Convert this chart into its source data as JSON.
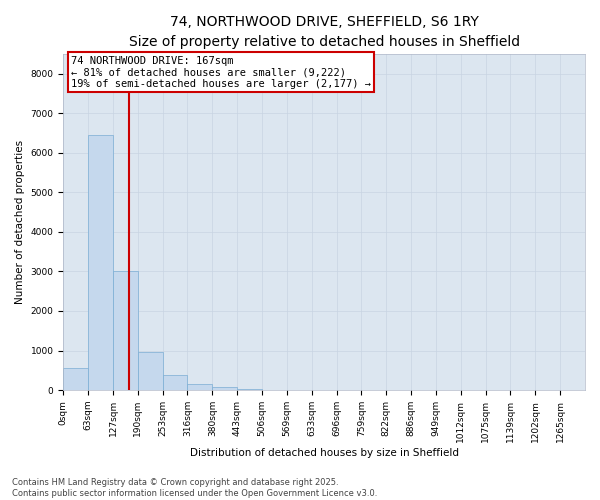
{
  "title_line1": "74, NORTHWOOD DRIVE, SHEFFIELD, S6 1RY",
  "title_line2": "Size of property relative to detached houses in Sheffield",
  "xlabel": "Distribution of detached houses by size in Sheffield",
  "ylabel": "Number of detached properties",
  "bar_labels": [
    "0sqm",
    "63sqm",
    "127sqm",
    "190sqm",
    "253sqm",
    "316sqm",
    "380sqm",
    "443sqm",
    "506sqm",
    "569sqm",
    "633sqm",
    "696sqm",
    "759sqm",
    "822sqm",
    "886sqm",
    "949sqm",
    "1012sqm",
    "1075sqm",
    "1139sqm",
    "1202sqm",
    "1265sqm"
  ],
  "bar_values": [
    550,
    6450,
    3000,
    970,
    390,
    160,
    90,
    30,
    5,
    0,
    0,
    0,
    0,
    0,
    0,
    0,
    0,
    0,
    0,
    0,
    0
  ],
  "bar_color": "#c5d8ed",
  "bar_edge_color": "#7aadd4",
  "property_line_x": 2.64,
  "annotation_line1": "74 NORTHWOOD DRIVE: 167sqm",
  "annotation_line2": "← 81% of detached houses are smaller (9,222)",
  "annotation_line3": "19% of semi-detached houses are larger (2,177) →",
  "annotation_box_color": "#ffffff",
  "annotation_box_edge": "#cc0000",
  "vline_color": "#cc0000",
  "ylim": [
    0,
    8500
  ],
  "yticks": [
    0,
    1000,
    2000,
    3000,
    4000,
    5000,
    6000,
    7000,
    8000
  ],
  "grid_color": "#c8d4e3",
  "bg_color": "#dce6f0",
  "footer_line1": "Contains HM Land Registry data © Crown copyright and database right 2025.",
  "footer_line2": "Contains public sector information licensed under the Open Government Licence v3.0.",
  "title_fontsize": 10,
  "axis_label_fontsize": 7.5,
  "tick_fontsize": 6.5,
  "annotation_fontsize": 7.5,
  "footer_fontsize": 6
}
